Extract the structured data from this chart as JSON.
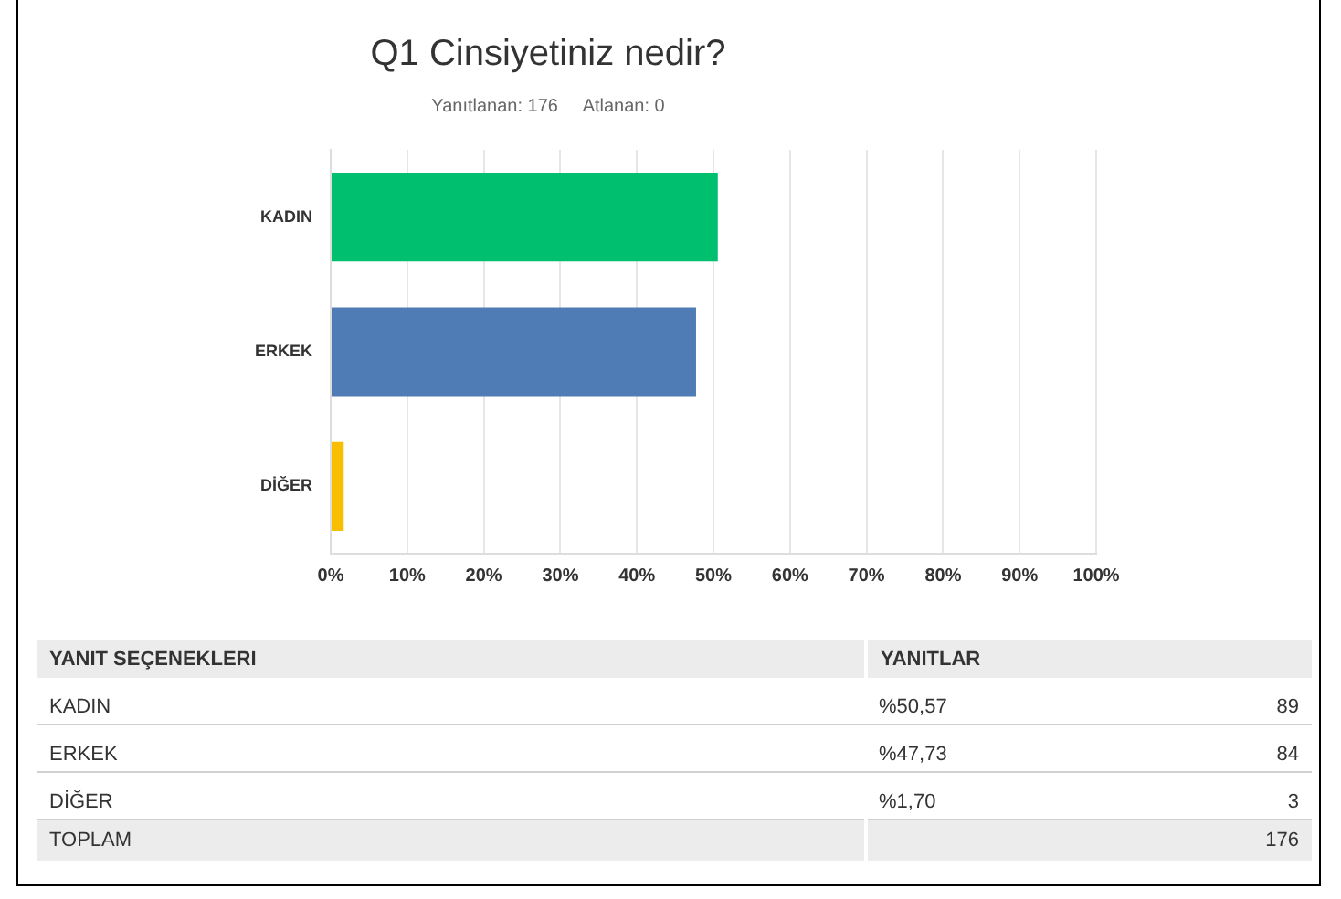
{
  "chart_data": {
    "type": "bar",
    "orientation": "horizontal",
    "title": "Q1 Cinsiyetiniz nedir?",
    "subtitle": "Yanıtlanan: 176     Atlanan: 0",
    "categories": [
      "KADIN",
      "ERKEK",
      "DİĞER"
    ],
    "values": [
      50.57,
      47.73,
      1.7
    ],
    "colors": [
      "#00bf6f",
      "#507cb6",
      "#f9be00"
    ],
    "xlim": [
      0,
      100
    ],
    "xticks": [
      {
        "value": 0,
        "label": "0%"
      },
      {
        "value": 10,
        "label": "10%"
      },
      {
        "value": 20,
        "label": "20%"
      },
      {
        "value": 30,
        "label": "30%"
      },
      {
        "value": 40,
        "label": "40%"
      },
      {
        "value": 50,
        "label": "50%"
      },
      {
        "value": 60,
        "label": "60%"
      },
      {
        "value": 70,
        "label": "70%"
      },
      {
        "value": 80,
        "label": "80%"
      },
      {
        "value": 90,
        "label": "90%"
      },
      {
        "value": 100,
        "label": "100%"
      }
    ],
    "grid": "x",
    "legend": false,
    "annotations": [
      "YANIT SEÇENEKLERI",
      "YANITLAR",
      "%50,57",
      "89",
      "%47,73",
      "84",
      "%1,70",
      "3",
      "TOPLAM",
      "176"
    ]
  }
}
